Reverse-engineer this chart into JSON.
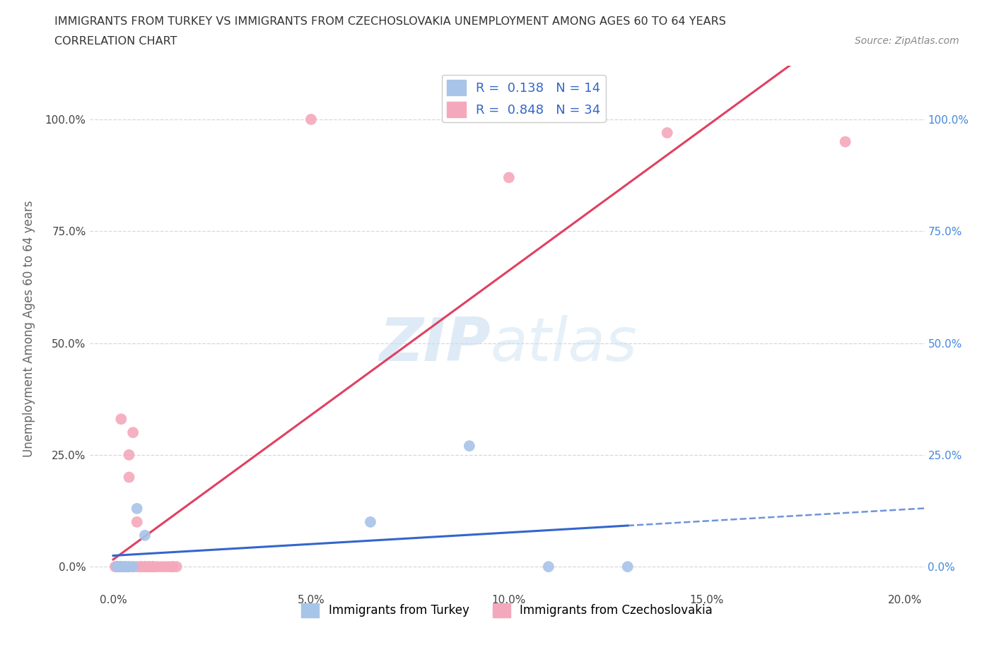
{
  "title_line1": "IMMIGRANTS FROM TURKEY VS IMMIGRANTS FROM CZECHOSLOVAKIA UNEMPLOYMENT AMONG AGES 60 TO 64 YEARS",
  "title_line2": "CORRELATION CHART",
  "source_text": "Source: ZipAtlas.com",
  "ylabel": "Unemployment Among Ages 60 to 64 years",
  "blue_R": "0.138",
  "blue_N": "14",
  "pink_R": "0.848",
  "pink_N": "34",
  "blue_color": "#a8c4e8",
  "pink_color": "#f4a8bc",
  "blue_line_color": "#3366cc",
  "pink_line_color": "#e04060",
  "blue_scatter_x": [
    0.001,
    0.0015,
    0.002,
    0.003,
    0.003,
    0.004,
    0.004,
    0.005,
    0.006,
    0.008,
    0.065,
    0.09,
    0.11,
    0.13
  ],
  "blue_scatter_y": [
    0.0,
    0.0,
    0.0,
    0.0,
    0.0,
    0.0,
    0.0,
    0.0,
    0.13,
    0.07,
    0.1,
    0.27,
    0.0,
    0.0
  ],
  "pink_scatter_x": [
    0.0005,
    0.001,
    0.001,
    0.001,
    0.002,
    0.002,
    0.002,
    0.003,
    0.003,
    0.004,
    0.004,
    0.005,
    0.005,
    0.006,
    0.006,
    0.007,
    0.007,
    0.008,
    0.008,
    0.009,
    0.009,
    0.01,
    0.01,
    0.011,
    0.012,
    0.013,
    0.014,
    0.015,
    0.015,
    0.016,
    0.05,
    0.1,
    0.14,
    0.185
  ],
  "pink_scatter_y": [
    0.0,
    0.0,
    0.0,
    0.0,
    0.0,
    0.33,
    0.0,
    0.0,
    0.0,
    0.2,
    0.25,
    0.3,
    0.0,
    0.1,
    0.0,
    0.0,
    0.0,
    0.0,
    0.0,
    0.0,
    0.0,
    0.0,
    0.0,
    0.0,
    0.0,
    0.0,
    0.0,
    0.0,
    0.0,
    0.0,
    1.0,
    0.87,
    0.97,
    0.95
  ],
  "xlim": [
    -0.006,
    0.205
  ],
  "ylim": [
    -0.055,
    1.12
  ],
  "yticks": [
    0.0,
    0.25,
    0.5,
    0.75,
    1.0
  ],
  "ytick_labels": [
    "0.0%",
    "25.0%",
    "50.0%",
    "75.0%",
    "100.0%"
  ],
  "xticks": [
    0.0,
    0.05,
    0.1,
    0.15,
    0.2
  ],
  "xtick_labels": [
    "0.0%",
    "5.0%",
    "10.0%",
    "15.0%",
    "20.0%"
  ],
  "legend_label_blue": "Immigrants from Turkey",
  "legend_label_pink": "Immigrants from Czechoslovakia",
  "bg_color": "#ffffff",
  "grid_color": "#d8d8d8",
  "legend_R_color": "#3366cc",
  "title_color": "#333333",
  "source_color": "#888888",
  "ylabel_color": "#666666",
  "right_tick_color": "#4488dd"
}
